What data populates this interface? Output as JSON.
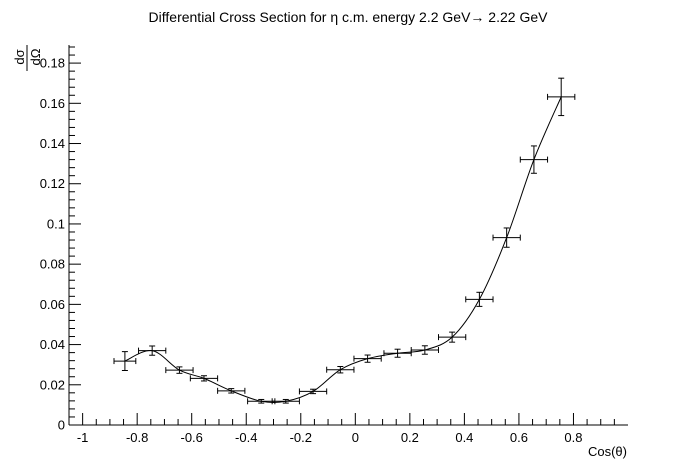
{
  "chart_data": {
    "type": "scatter",
    "title": "Differential Cross Section for η c.m. energy 2.2 GeV→ 2.22 GeV",
    "xlabel": "Cos(θ)",
    "ylabel_top": "dσ",
    "ylabel_bottom": "dΩ",
    "xlim": [
      -1.05,
      1.0
    ],
    "ylim": [
      0,
      0.189
    ],
    "x_ticks": [
      -1,
      -0.8,
      -0.6,
      -0.4,
      -0.2,
      0,
      0.2,
      0.4,
      0.6,
      0.8
    ],
    "x_tick_labels": [
      "-1",
      "-0.8",
      "-0.6",
      "-0.4",
      "-0.2",
      "0",
      "0.2",
      "0.4",
      "0.6",
      "0.8"
    ],
    "y_ticks": [
      0,
      0.02,
      0.04,
      0.06,
      0.08,
      0.1,
      0.12,
      0.14,
      0.16,
      0.18
    ],
    "y_tick_labels": [
      "0",
      "0.02",
      "0.04",
      "0.06",
      "0.08",
      "0.1",
      "0.12",
      "0.14",
      "0.16",
      "0.18"
    ],
    "grid": false,
    "legend": "none",
    "series": [
      {
        "name": "data",
        "points": [
          {
            "x": -0.845,
            "y": 0.0318,
            "xerr": 0.04,
            "yerr": 0.0047
          },
          {
            "x": -0.745,
            "y": 0.037,
            "xerr": 0.05,
            "yerr": 0.0023
          },
          {
            "x": -0.645,
            "y": 0.0273,
            "xerr": 0.05,
            "yerr": 0.0016
          },
          {
            "x": -0.555,
            "y": 0.0232,
            "xerr": 0.05,
            "yerr": 0.0013
          },
          {
            "x": -0.455,
            "y": 0.017,
            "xerr": 0.05,
            "yerr": 0.0011
          },
          {
            "x": -0.345,
            "y": 0.0118,
            "xerr": 0.05,
            "yerr": 0.0009
          },
          {
            "x": -0.255,
            "y": 0.0118,
            "xerr": 0.05,
            "yerr": 0.0009
          },
          {
            "x": -0.155,
            "y": 0.0167,
            "xerr": 0.05,
            "yerr": 0.0011
          },
          {
            "x": -0.055,
            "y": 0.0275,
            "xerr": 0.05,
            "yerr": 0.0016
          },
          {
            "x": 0.045,
            "y": 0.033,
            "xerr": 0.05,
            "yerr": 0.0018
          },
          {
            "x": 0.155,
            "y": 0.0357,
            "xerr": 0.05,
            "yerr": 0.002
          },
          {
            "x": 0.255,
            "y": 0.0373,
            "xerr": 0.05,
            "yerr": 0.0021
          },
          {
            "x": 0.355,
            "y": 0.0437,
            "xerr": 0.05,
            "yerr": 0.0025
          },
          {
            "x": 0.455,
            "y": 0.0625,
            "xerr": 0.05,
            "yerr": 0.0035
          },
          {
            "x": 0.555,
            "y": 0.0932,
            "xerr": 0.05,
            "yerr": 0.0048
          },
          {
            "x": 0.655,
            "y": 0.132,
            "xerr": 0.05,
            "yerr": 0.0068
          },
          {
            "x": 0.755,
            "y": 0.1632,
            "xerr": 0.05,
            "yerr": 0.0093
          }
        ]
      }
    ]
  }
}
